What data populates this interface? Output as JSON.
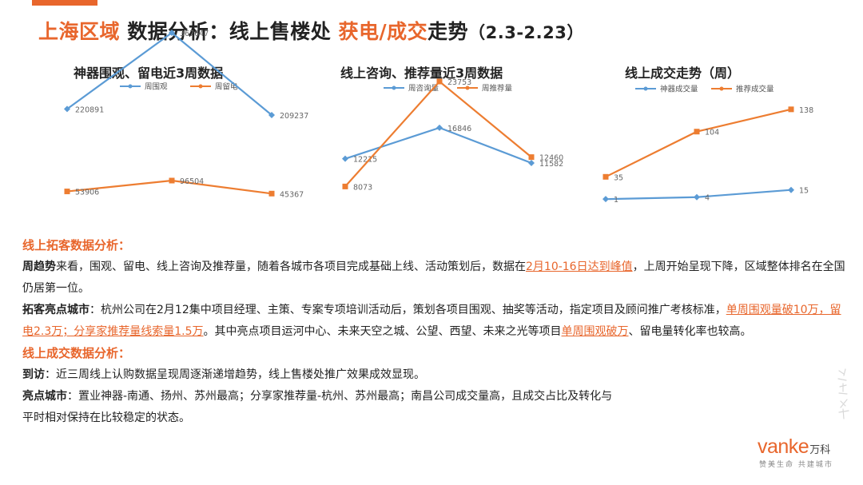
{
  "title": {
    "region": "上海区域",
    "part1": "数据分析：线上售楼处",
    "part2": "获电/成交",
    "part3": "走势",
    "period": "（2.3-2.23）"
  },
  "colors": {
    "accent": "#e8662c",
    "blue": "#5b9bd5",
    "orange": "#ed7d31"
  },
  "charts": [
    {
      "title": "神器围观、留电近3周数据"
    },
    {
      "title": "线上咨询、推荐量近3周数据"
    },
    {
      "title": "线上成交走势（周）"
    }
  ],
  "chart_data": [
    {
      "type": "line",
      "title": "神器围观、留电近3周数据",
      "categories": [
        "",
        "",
        ""
      ],
      "series": [
        {
          "name": "周围观",
          "color": "#5b9bd5",
          "values": [
            220891,
            367647,
            209237
          ]
        },
        {
          "name": "周留电",
          "color": "#ed7d31",
          "values": [
            53906,
            96504,
            45367
          ]
        }
      ],
      "legend": "top"
    },
    {
      "type": "line",
      "title": "线上咨询、推荐量近3周数据",
      "categories": [
        "",
        "",
        ""
      ],
      "series": [
        {
          "name": "周咨询量",
          "color": "#5b9bd5",
          "values": [
            12215,
            16846,
            11582
          ]
        },
        {
          "name": "周推荐量",
          "color": "#ed7d31",
          "values": [
            8073,
            23753,
            12460
          ]
        }
      ],
      "legend": "top"
    },
    {
      "type": "line",
      "title": "线上成交走势（周）",
      "categories": [
        "",
        "",
        ""
      ],
      "series": [
        {
          "name": "神器成交量",
          "color": "#5b9bd5",
          "values": [
            1,
            4,
            15
          ]
        },
        {
          "name": "推荐成交量",
          "color": "#ed7d31",
          "values": [
            35,
            104,
            138
          ]
        }
      ],
      "legend": "top"
    }
  ],
  "analysis": {
    "online_head": "线上拓客数据分析：",
    "weekly_lead": "周趋势",
    "weekly_a": "来看，围观、留电、线上咨询及推荐量，随着各城市各项目完成基础上线、活动策划后，数据在",
    "weekly_hl": "2月10-16日达到峰值",
    "weekly_b": "，上周开始呈现下降，区域整体排名在全国仍居第一位。",
    "city_lead": "拓客亮点城市",
    "city_a": "：杭州公司在2月12集中项目经理、主策、专案专项培训活动后，策划各项目围观、抽奖等活动，指定项目及顾问推广考核标准，",
    "city_hl1": "单周围观量破10万，留电2.3万；分享家推荐量线索量1.5万",
    "city_b": "。其中亮点项目运河中心、未来天空之城、公望、西望、未来之光等项目",
    "city_hl2": "单周围观破万",
    "city_c": "、留电量转化率也较高。",
    "deal_head": "线上成交数据分析：",
    "visit_lead": "到访",
    "visit_text": "：近三周线上认购数据呈现周逐渐递增趋势，线上售楼处推广效果成效显现。",
    "bright_lead": "亮点城市",
    "bright_text": "：置业神器-南通、扬州、苏州最高；分享家推荐量-杭州、苏州最高；南昌公司成交量高，且成交占比及转化与",
    "bright_text2": "平时相对保持在比较稳定的状态。"
  },
  "logo": {
    "word": "vanke",
    "cn": "万科",
    "slogan": "赞美生命 共建城市"
  }
}
